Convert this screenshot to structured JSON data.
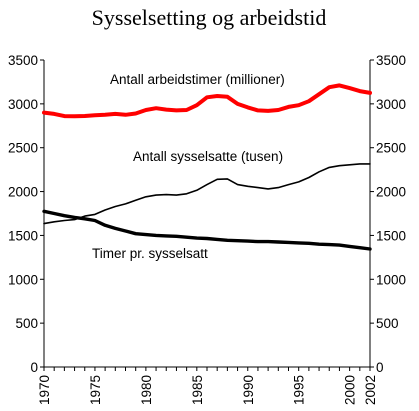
{
  "chart_data": {
    "type": "line",
    "title": "Sysselsetting og arbeidstid",
    "x": [
      1970,
      1971,
      1972,
      1973,
      1974,
      1975,
      1976,
      1977,
      1978,
      1979,
      1980,
      1981,
      1982,
      1983,
      1984,
      1985,
      1986,
      1987,
      1988,
      1989,
      1990,
      1991,
      1992,
      1993,
      1994,
      1995,
      1996,
      1997,
      1998,
      1999,
      2000,
      2001,
      2002
    ],
    "x_tick_labels": [
      "1970",
      "1975",
      "1980",
      "1985",
      "1990",
      "1995",
      "2000",
      "2002"
    ],
    "y_ticks": [
      0,
      500,
      1000,
      1500,
      2000,
      2500,
      3000,
      3500
    ],
    "ylim": [
      0,
      3500
    ],
    "xlim": [
      1970,
      2002
    ],
    "grid": false,
    "right_axis": true,
    "series": [
      {
        "name": "Antall arbeidstimer (millioner)",
        "color": "#ff0000",
        "values": [
          2900,
          2885,
          2860,
          2858,
          2862,
          2870,
          2875,
          2885,
          2875,
          2890,
          2930,
          2950,
          2935,
          2925,
          2930,
          2985,
          3075,
          3090,
          3080,
          3000,
          2960,
          2925,
          2920,
          2930,
          2965,
          2985,
          3030,
          3110,
          3190,
          3210,
          3180,
          3145,
          3125
        ]
      },
      {
        "name": "Antall sysselsatte (tusen)",
        "color": "#000000",
        "values": [
          1635,
          1655,
          1670,
          1680,
          1720,
          1740,
          1790,
          1830,
          1860,
          1900,
          1940,
          1960,
          1965,
          1960,
          1975,
          2015,
          2080,
          2140,
          2145,
          2080,
          2060,
          2045,
          2030,
          2045,
          2080,
          2110,
          2160,
          2225,
          2275,
          2295,
          2305,
          2315,
          2315
        ]
      },
      {
        "name": "Timer pr. sysselsatt",
        "color": "#000000",
        "values": [
          1775,
          1750,
          1725,
          1705,
          1690,
          1670,
          1615,
          1580,
          1550,
          1520,
          1510,
          1500,
          1495,
          1490,
          1480,
          1470,
          1465,
          1455,
          1445,
          1440,
          1435,
          1430,
          1430,
          1425,
          1420,
          1415,
          1410,
          1400,
          1395,
          1390,
          1375,
          1360,
          1345
        ]
      }
    ],
    "annotations": [
      "Antall arbeidstimer (millioner)",
      "Antall sysselsatte (tusen)",
      "Timer pr. sysselsatt"
    ]
  }
}
